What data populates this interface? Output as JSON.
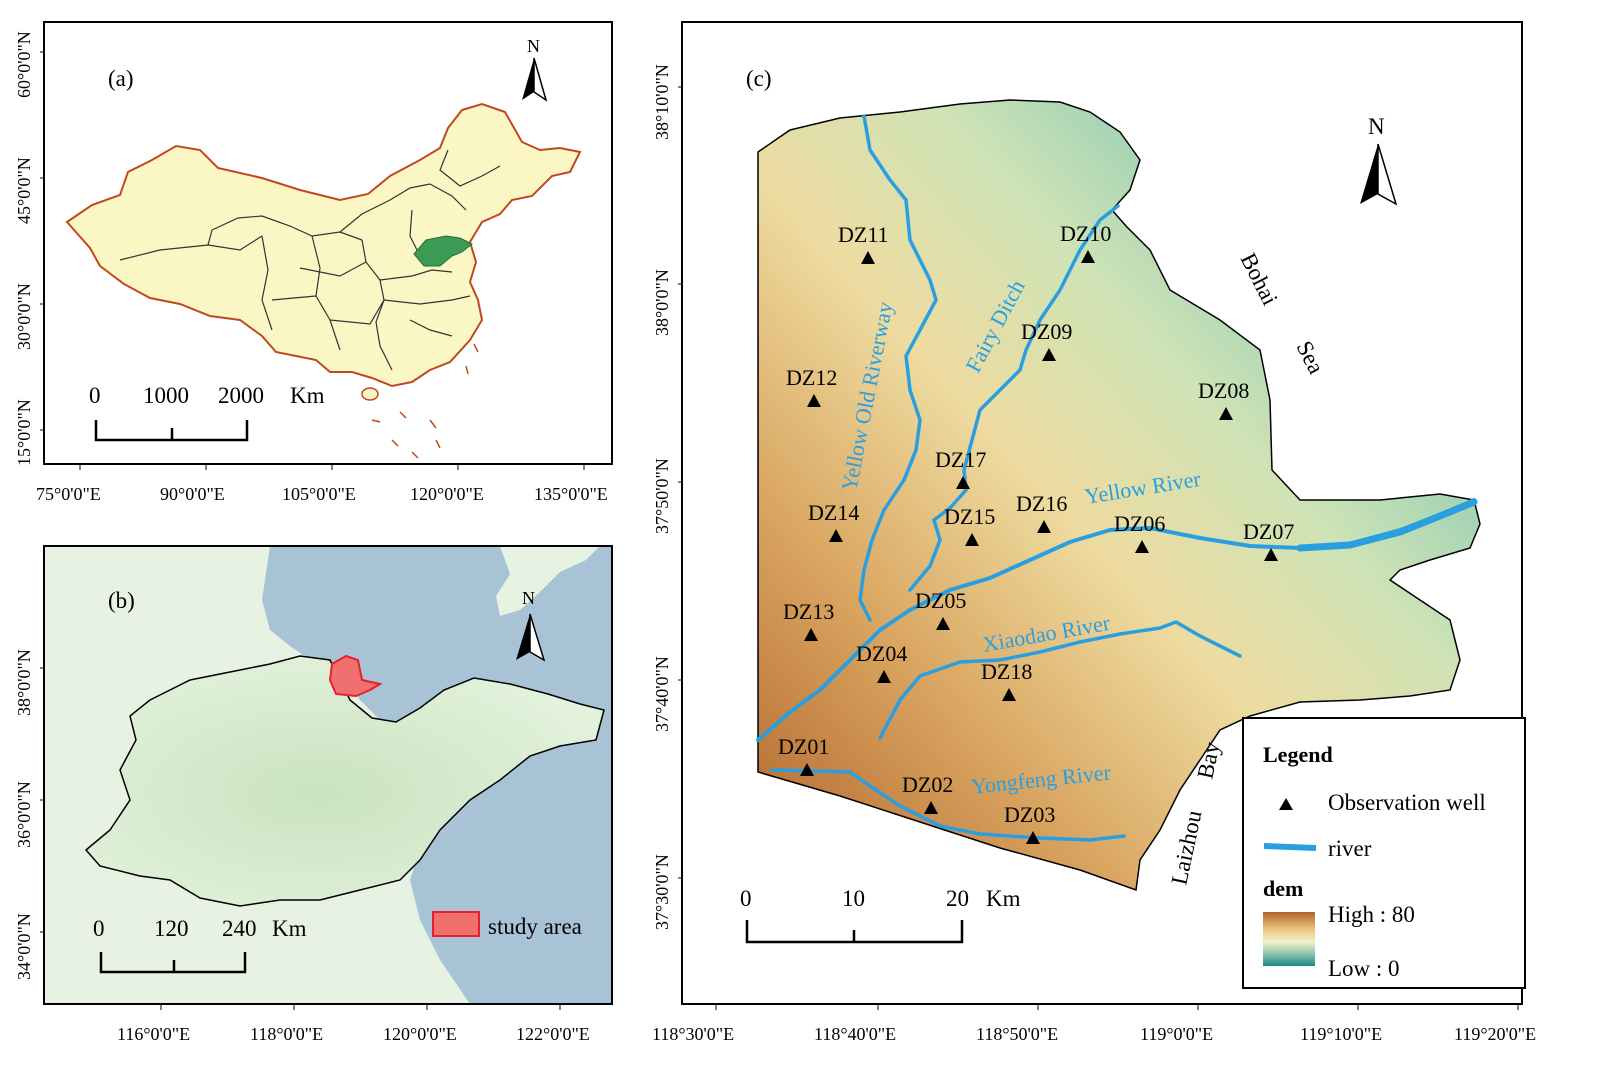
{
  "panel_a": {
    "label": "(a)",
    "north": "N",
    "lat_ticks": [
      "60°0'0\"N",
      "45°0'0\"N",
      "30°0'0\"N",
      "15°0'0\"N"
    ],
    "lon_ticks": [
      "75°0'0\"E",
      "90°0'0\"E",
      "105°0'0\"E",
      "120°0'0\"E",
      "135°0'0\"E"
    ],
    "scale_labels": [
      "0",
      "1000",
      "2000",
      "Km"
    ]
  },
  "panel_b": {
    "label": "(b)",
    "north": "N",
    "lat_ticks": [
      "38°0'0\"N",
      "36°0'0\"N",
      "34°0'0\"N"
    ],
    "lon_ticks": [
      "116°0'0\"E",
      "118°0'0\"E",
      "120°0'0\"E",
      "122°0'0\"E"
    ],
    "scale_labels": [
      "0",
      "120",
      "240",
      "Km"
    ],
    "study_area_label": "study area"
  },
  "panel_c": {
    "label": "(c)",
    "north": "N",
    "lat_ticks": [
      "38°10'0\"N",
      "38°0'0\"N",
      "37°50'0\"N",
      "37°40'0\"N",
      "37°30'0\"N"
    ],
    "lon_ticks": [
      "118°30'0\"E",
      "118°40'0\"E",
      "118°50'0\"E",
      "119°0'0\"E",
      "119°10'0\"E",
      "119°20'0\"E"
    ],
    "scale_labels": [
      "0",
      "10",
      "20",
      "Km"
    ],
    "wells": [
      "DZ01",
      "DZ02",
      "DZ03",
      "DZ04",
      "DZ05",
      "DZ06",
      "DZ07",
      "DZ08",
      "DZ09",
      "DZ10",
      "DZ11",
      "DZ12",
      "DZ13",
      "DZ14",
      "DZ15",
      "DZ16",
      "DZ17",
      "DZ18"
    ],
    "rivers": [
      "Yellow Old Riverway",
      "Fairy Ditch",
      "Yellow River",
      "Xiaodao River",
      "Yongfeng River"
    ],
    "sea_labels": [
      "Bohai",
      "Sea",
      "Laizhou",
      "Bay"
    ],
    "legend": {
      "title": "Legend",
      "well_label": "Observation well",
      "river_label": "river",
      "dem_title": "dem",
      "high": "High : 80",
      "low": "Low : 0"
    },
    "colors": {
      "river": "#2a9fe0",
      "high": "#b0622a",
      "low": "#1a8a8a"
    }
  }
}
